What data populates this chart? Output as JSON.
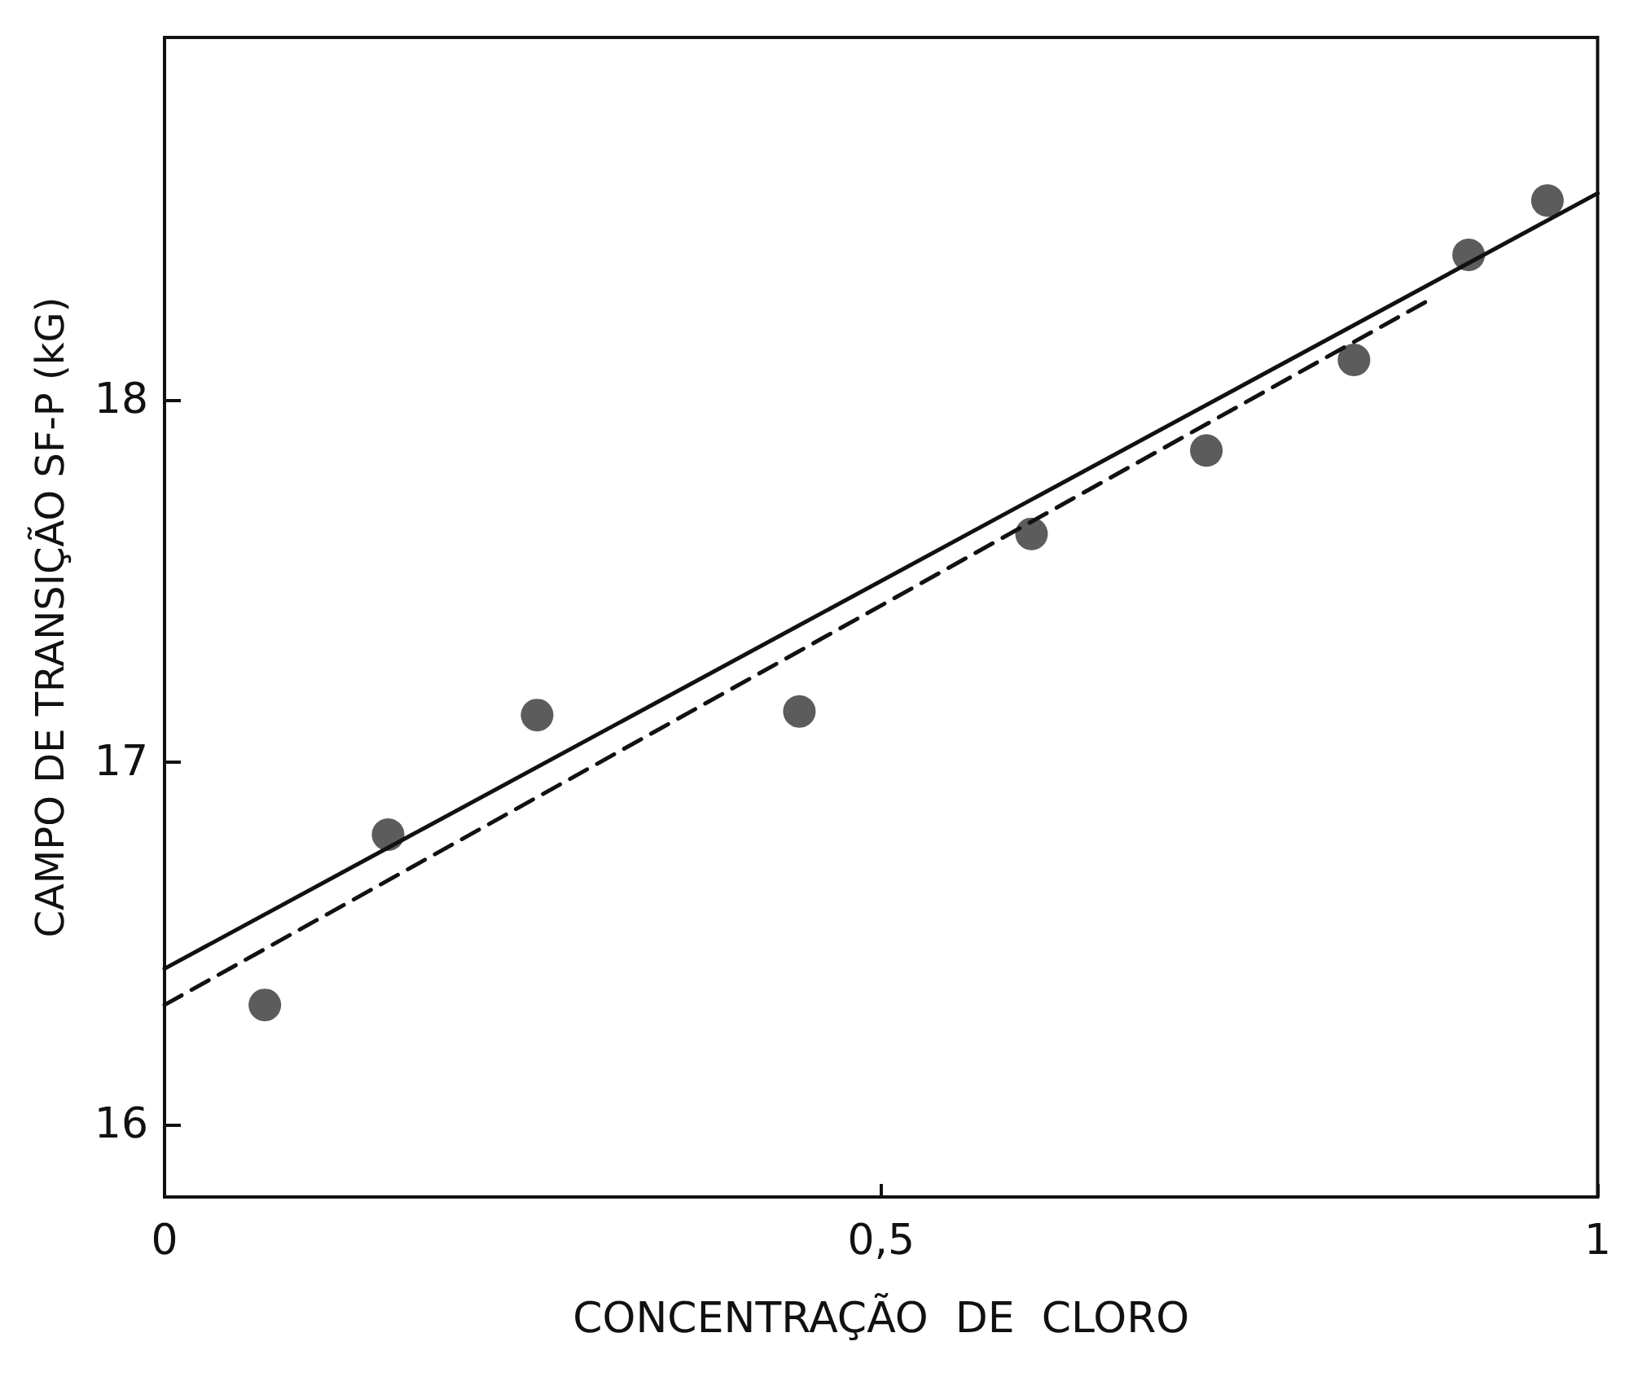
{
  "chart_data": {
    "type": "scatter",
    "xlabel": "CONCENTRAÇÃO  DE  CLORO",
    "ylabel": "CAMPO DE TRANSIÇÃO SF-P (kG)",
    "xlim": [
      0,
      1
    ],
    "ylim": [
      15.8,
      19
    ],
    "xticks": [
      0,
      {
        "value": 0.5,
        "label": "0,5"
      },
      1
    ],
    "yticks": [
      16,
      17,
      18
    ],
    "grid": false,
    "marker": "circle",
    "series": [
      {
        "type": "scatter",
        "color": "#333333",
        "x": [
          0.07,
          0.156,
          0.26,
          0.443,
          0.605,
          0.727,
          0.83,
          0.91,
          0.965
        ],
        "values": [
          16.33,
          16.8,
          17.13,
          17.14,
          17.63,
          17.86,
          18.11,
          18.4,
          18.55
        ]
      },
      {
        "type": "line",
        "color": "#111111",
        "line_style": "solid",
        "marker": "none",
        "x": [
          0,
          1
        ],
        "values": [
          16.43,
          18.57
        ]
      },
      {
        "type": "line",
        "color": "#111111",
        "line_style": "dashed",
        "marker": "none",
        "x": [
          0,
          0.88
        ],
        "values": [
          16.33,
          18.27
        ]
      }
    ]
  }
}
